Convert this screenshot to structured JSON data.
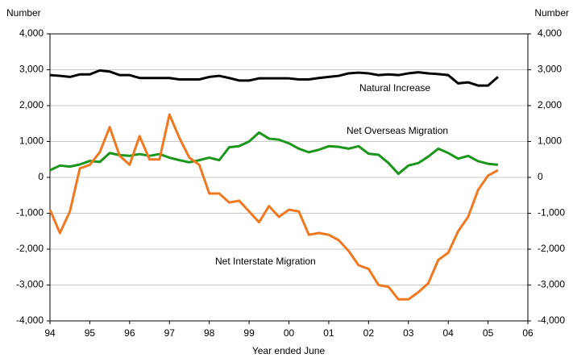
{
  "chart_data": {
    "type": "line",
    "y_label": "Number",
    "y2_label": "Number",
    "x_label": "Year ended June",
    "annotations": [
      "Natural Increase",
      "Net Overseas Migration",
      "Net Interstate Migration"
    ],
    "x": [
      1994,
      1994.25,
      1994.5,
      1994.75,
      1995,
      1995.25,
      1995.5,
      1995.75,
      1996,
      1996.25,
      1996.5,
      1996.75,
      1997,
      1997.25,
      1997.5,
      1997.75,
      1998,
      1998.25,
      1998.5,
      1998.75,
      1999,
      1999.25,
      1999.5,
      1999.75,
      2000,
      2000.25,
      2000.5,
      2000.75,
      2001,
      2001.25,
      2001.5,
      2001.75,
      2002,
      2002.25,
      2002.5,
      2002.75,
      2003,
      2003.25,
      2003.5,
      2003.75,
      2004,
      2004.25,
      2004.5,
      2004.75,
      2005,
      2005.25
    ],
    "series": [
      {
        "name": "Natural Increase",
        "color": "#000000",
        "values": [
          2850,
          2830,
          2800,
          2870,
          2870,
          2980,
          2950,
          2850,
          2850,
          2770,
          2770,
          2770,
          2770,
          2730,
          2730,
          2730,
          2800,
          2830,
          2770,
          2700,
          2700,
          2760,
          2760,
          2760,
          2760,
          2730,
          2730,
          2770,
          2800,
          2830,
          2900,
          2920,
          2900,
          2850,
          2870,
          2850,
          2900,
          2930,
          2900,
          2880,
          2850,
          2620,
          2650,
          2560,
          2560,
          2800
        ]
      },
      {
        "name": "Net Overseas Migration",
        "color": "#1a961a",
        "values": [
          200,
          330,
          300,
          360,
          460,
          430,
          680,
          620,
          600,
          650,
          600,
          650,
          550,
          480,
          420,
          480,
          550,
          480,
          840,
          870,
          1000,
          1250,
          1080,
          1050,
          950,
          800,
          700,
          770,
          870,
          850,
          800,
          870,
          660,
          630,
          400,
          100,
          330,
          400,
          580,
          800,
          680,
          520,
          600,
          450,
          380,
          350
        ]
      },
      {
        "name": "Net Interstate Migration",
        "color": "#f07820",
        "values": [
          -900,
          -1550,
          -950,
          250,
          350,
          700,
          1400,
          600,
          350,
          1150,
          500,
          500,
          1750,
          1100,
          550,
          350,
          -450,
          -450,
          -700,
          -650,
          -950,
          -1250,
          -800,
          -1100,
          -900,
          -950,
          -1600,
          -1550,
          -1600,
          -1750,
          -2050,
          -2450,
          -2550,
          -3000,
          -3050,
          -3400,
          -3400,
          -3200,
          -2950,
          -2300,
          -2100,
          -1500,
          -1100,
          -350,
          50,
          200
        ]
      }
    ],
    "xlim": [
      1994,
      2006
    ],
    "xticks": [
      {
        "value": 1994,
        "label": "94"
      },
      {
        "value": 1995,
        "label": "95"
      },
      {
        "value": 1996,
        "label": "96"
      },
      {
        "value": 1997,
        "label": "97"
      },
      {
        "value": 1998,
        "label": "98"
      },
      {
        "value": 1999,
        "label": "99"
      },
      {
        "value": 2000,
        "label": "00"
      },
      {
        "value": 2001,
        "label": "01"
      },
      {
        "value": 2002,
        "label": "02"
      },
      {
        "value": 2003,
        "label": "03"
      },
      {
        "value": 2004,
        "label": "04"
      },
      {
        "value": 2005,
        "label": "05"
      },
      {
        "value": 2006,
        "label": "06"
      }
    ],
    "ylim": [
      -4000,
      4000
    ],
    "yticks": [
      {
        "value": -4000,
        "label": "-4,000"
      },
      {
        "value": -3000,
        "label": "-3,000"
      },
      {
        "value": -2000,
        "label": "-2,000"
      },
      {
        "value": -1000,
        "label": "-1,000"
      },
      0,
      {
        "value": 1000,
        "label": "1,000"
      },
      {
        "value": 2000,
        "label": "2,000"
      },
      {
        "value": 3000,
        "label": "3,000"
      },
      {
        "value": 4000,
        "label": "4,000"
      }
    ],
    "y2lim": [
      -4000,
      4000
    ],
    "y2ticks": [
      {
        "value": -4000,
        "label": "-4,000"
      },
      {
        "value": -3000,
        "label": "-3,000"
      },
      {
        "value": -2000,
        "label": "-2,000"
      },
      {
        "value": -1000,
        "label": "-1,000"
      },
      0,
      {
        "value": 1000,
        "label": "1,000"
      },
      {
        "value": 2000,
        "label": "2,000"
      },
      {
        "value": 3000,
        "label": "3,000"
      },
      {
        "value": 4000,
        "label": "4,000"
      }
    ],
    "grid": true
  }
}
